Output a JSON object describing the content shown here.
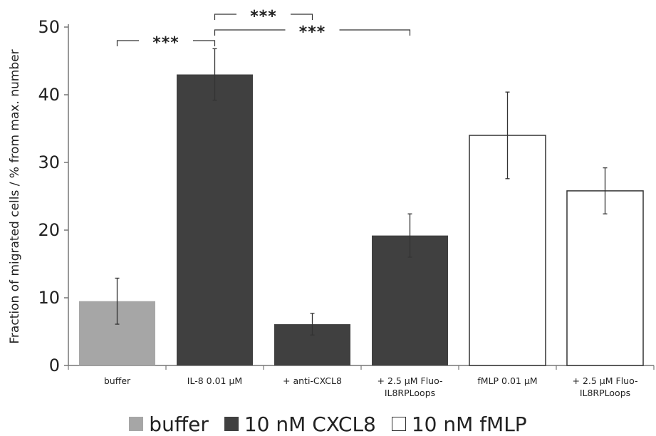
{
  "chart_data": {
    "type": "bar",
    "ylabel": "Fraction of migrated cells / % from max. number",
    "xlabel": "",
    "ylim": [
      0,
      50
    ],
    "yticks": [
      0,
      10,
      20,
      30,
      40,
      50
    ],
    "categories": [
      "buffer",
      "IL-8 0.01 µM",
      "+ anti-CXCL8",
      "+ 2.5 µM Fluo-\nIL8RPLoops",
      "fMLP 0.01 µM",
      "+ 2.5 µM Fluo-\nIL8RPLoops"
    ],
    "values": [
      9.5,
      43.0,
      6.1,
      19.2,
      34.0,
      25.8
    ],
    "errors": [
      3.4,
      3.8,
      1.6,
      3.2,
      6.4,
      3.4
    ],
    "groups": [
      "buffer",
      "10 nM CXCL8",
      "10 nM CXCL8",
      "10 nM CXCL8",
      "10 nM fMLP",
      "10 nM fMLP"
    ],
    "legend": [
      {
        "name": "buffer",
        "color": "#a6a6a6"
      },
      {
        "name": "10 nM CXCL8",
        "color": "#404040"
      },
      {
        "name": "10 nM fMLP",
        "color": "#ffffff"
      }
    ],
    "legend_position": "bottom",
    "grid": false,
    "significance": [
      {
        "from": 0,
        "to": 1,
        "label": "***"
      },
      {
        "from": 1,
        "to": 2,
        "label": "***"
      },
      {
        "from": 1,
        "to": 3,
        "label": "***"
      }
    ]
  }
}
